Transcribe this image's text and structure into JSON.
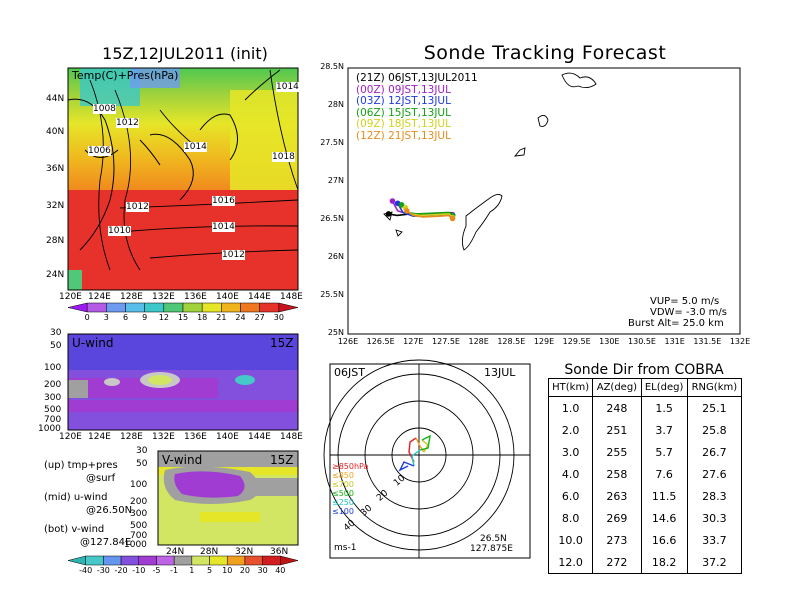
{
  "upper": {
    "title": "15Z,12JUL2011 (init)",
    "label": "Temp(C)+Pres(hPa)",
    "lat_ticks": [
      "44N",
      "40N",
      "36N",
      "32N",
      "28N",
      "24N"
    ],
    "lon_ticks": [
      "120E",
      "124E",
      "128E",
      "132E",
      "136E",
      "140E",
      "144E",
      "148E"
    ],
    "isobars": [
      "1008",
      "1012",
      "1014",
      "1006",
      "1012",
      "1016",
      "1010",
      "1014",
      "1012",
      "1018",
      "1014"
    ],
    "colorbar_ticks": [
      "0",
      "3",
      "6",
      "9",
      "12",
      "15",
      "18",
      "21",
      "24",
      "27",
      "30"
    ],
    "colorbar_colors": [
      "#9b19f5",
      "#b45ae6",
      "#6e9bf0",
      "#5abeeb",
      "#3cc8c8",
      "#50c878",
      "#a0d23c",
      "#e6e628",
      "#f0b41e",
      "#f0781e",
      "#e63228",
      "#c8141e"
    ]
  },
  "uwind": {
    "label": "U-wind",
    "time": "15Z",
    "p_ticks": [
      "30",
      "50",
      "100",
      "200",
      "300",
      "500",
      "700",
      "1000"
    ],
    "lon_ticks": [
      "120E",
      "124E",
      "128E",
      "132E",
      "136E",
      "140E",
      "144E",
      "148E"
    ]
  },
  "vwind": {
    "label": "V-wind",
    "time": "15Z",
    "p_ticks": [
      "30",
      "50",
      "100",
      "200",
      "300",
      "500",
      "700",
      "1000"
    ],
    "lat_ticks": [
      "24N",
      "28N",
      "32N",
      "36N"
    ],
    "colorbar_ticks": [
      "-40",
      "-30",
      "-20",
      "-10",
      "-5",
      "-1",
      "1",
      "5",
      "10",
      "20",
      "30",
      "40"
    ],
    "colorbar_colors": [
      "#2db4b4",
      "#46c8c8",
      "#6496f0",
      "#8250dc",
      "#a03cd2",
      "#be64e6",
      "#a0a0a0",
      "#d2e664",
      "#e6e628",
      "#f0a01e",
      "#e6502d",
      "#d21e1e",
      "#be1414"
    ]
  },
  "legend_notes": [
    {
      "line1": "(up) tmp+pres",
      "line2": "@surf"
    },
    {
      "line1": "(mid) u-wind",
      "line2": "@26.50N"
    },
    {
      "line1": "(bot) v-wind",
      "line2": "@127.84E"
    }
  ],
  "tracking": {
    "title": "Sonde Tracking Forecast",
    "lat_ticks": [
      "28.5N",
      "28N",
      "27.5N",
      "27N",
      "26.5N",
      "26N",
      "25.5N",
      "25N"
    ],
    "lon_ticks": [
      "126E",
      "126.5E",
      "127E",
      "127.5E",
      "128E",
      "128.5E",
      "129E",
      "129.5E",
      "130E",
      "130.5E",
      "131E",
      "131.5E",
      "132E"
    ],
    "legend": [
      {
        "label": "(21Z)  06JST,13JUL2011",
        "color": "#000000"
      },
      {
        "label": "(00Z)  09JST,13JUL",
        "color": "#a020c8"
      },
      {
        "label": "(03Z)  12JST,13JUL",
        "color": "#1e3cdc"
      },
      {
        "label": "(06Z)  15JST,13JUL",
        "color": "#14a014"
      },
      {
        "label": "(09Z)  18JST,13JUL",
        "color": "#d2d21e"
      },
      {
        "label": "(12Z)  21JST,13JUL",
        "color": "#e68c1e"
      }
    ],
    "info": [
      "VUP= 5.0 m/s",
      "VDW= -3.0 m/s",
      "Burst Alt= 25.0 km"
    ]
  },
  "hodograph": {
    "time_label": "06JST",
    "date_label": "13JUL",
    "ring_labels": [
      "10",
      "20",
      "30",
      "40"
    ],
    "levels": [
      {
        "label": "≥850hPa",
        "color": "#e61e1e"
      },
      {
        "label": "≤850",
        "color": "#f0a01e"
      },
      {
        "label": "≤700",
        "color": "#c8c81e"
      },
      {
        "label": "≤500",
        "color": "#14b414"
      },
      {
        "label": "≤250",
        "color": "#1ec8c8"
      },
      {
        "label": "≤100",
        "color": "#1e3cdc"
      }
    ],
    "units": "ms-1",
    "loc1": "26.5N",
    "loc2": "127.875E"
  },
  "chart_data": [
    {
      "type": "table",
      "title": "Sonde Dir from COBRA",
      "columns": [
        "HT(km)",
        "AZ(deg)",
        "EL(deg)",
        "RNG(km)"
      ],
      "rows": [
        [
          "1.0",
          "248",
          "1.5",
          "25.1"
        ],
        [
          "2.0",
          "251",
          "3.7",
          "25.8"
        ],
        [
          "3.0",
          "255",
          "5.7",
          "26.7"
        ],
        [
          "4.0",
          "258",
          "7.6",
          "27.6"
        ],
        [
          "6.0",
          "263",
          "11.5",
          "28.3"
        ],
        [
          "8.0",
          "269",
          "14.6",
          "30.3"
        ],
        [
          "10.0",
          "273",
          "16.6",
          "33.7"
        ],
        [
          "12.0",
          "272",
          "18.2",
          "37.2"
        ]
      ]
    },
    {
      "type": "line",
      "title": "Sonde Tracking Forecast",
      "xlim": [
        126,
        132
      ],
      "ylim": [
        25,
        28.5
      ],
      "series": [
        {
          "name": "(21Z)  06JST,13JUL2011",
          "points": [
            [
              126.62,
              26.58
            ],
            [
              126.75,
              26.56
            ],
            [
              126.95,
              26.58
            ],
            [
              127.2,
              26.58
            ],
            [
              127.55,
              26.58
            ],
            [
              127.58,
              26.57
            ]
          ]
        },
        {
          "name": "(00Z)  09JST,13JUL",
          "points": [
            [
              126.68,
              26.75
            ],
            [
              126.76,
              26.62
            ],
            [
              126.95,
              26.57
            ],
            [
              127.2,
              26.58
            ],
            [
              127.55,
              26.58
            ],
            [
              127.6,
              26.57
            ]
          ]
        },
        {
          "name": "(03Z)  12JST,13JUL",
          "points": [
            [
              126.76,
              26.72
            ],
            [
              126.84,
              26.6
            ],
            [
              127.0,
              26.55
            ],
            [
              127.25,
              26.56
            ],
            [
              127.55,
              26.57
            ],
            [
              127.6,
              26.56
            ]
          ]
        },
        {
          "name": "(06Z)  15JST,13JUL",
          "points": [
            [
              126.82,
              26.7
            ],
            [
              126.9,
              26.6
            ],
            [
              127.05,
              26.58
            ],
            [
              127.3,
              26.59
            ],
            [
              127.55,
              26.6
            ],
            [
              127.6,
              26.56
            ]
          ]
        },
        {
          "name": "(09Z)  18JST,13JUL",
          "points": [
            [
              126.88,
              26.66
            ],
            [
              126.96,
              26.58
            ],
            [
              127.1,
              26.56
            ],
            [
              127.35,
              26.57
            ],
            [
              127.55,
              26.58
            ],
            [
              127.6,
              26.53
            ]
          ]
        },
        {
          "name": "(12Z)  21JST,13JUL",
          "points": [
            [
              126.9,
              26.62
            ],
            [
              127.0,
              26.56
            ],
            [
              127.15,
              26.54
            ],
            [
              127.4,
              26.55
            ],
            [
              127.55,
              26.56
            ],
            [
              127.6,
              26.52
            ]
          ]
        }
      ]
    }
  ]
}
